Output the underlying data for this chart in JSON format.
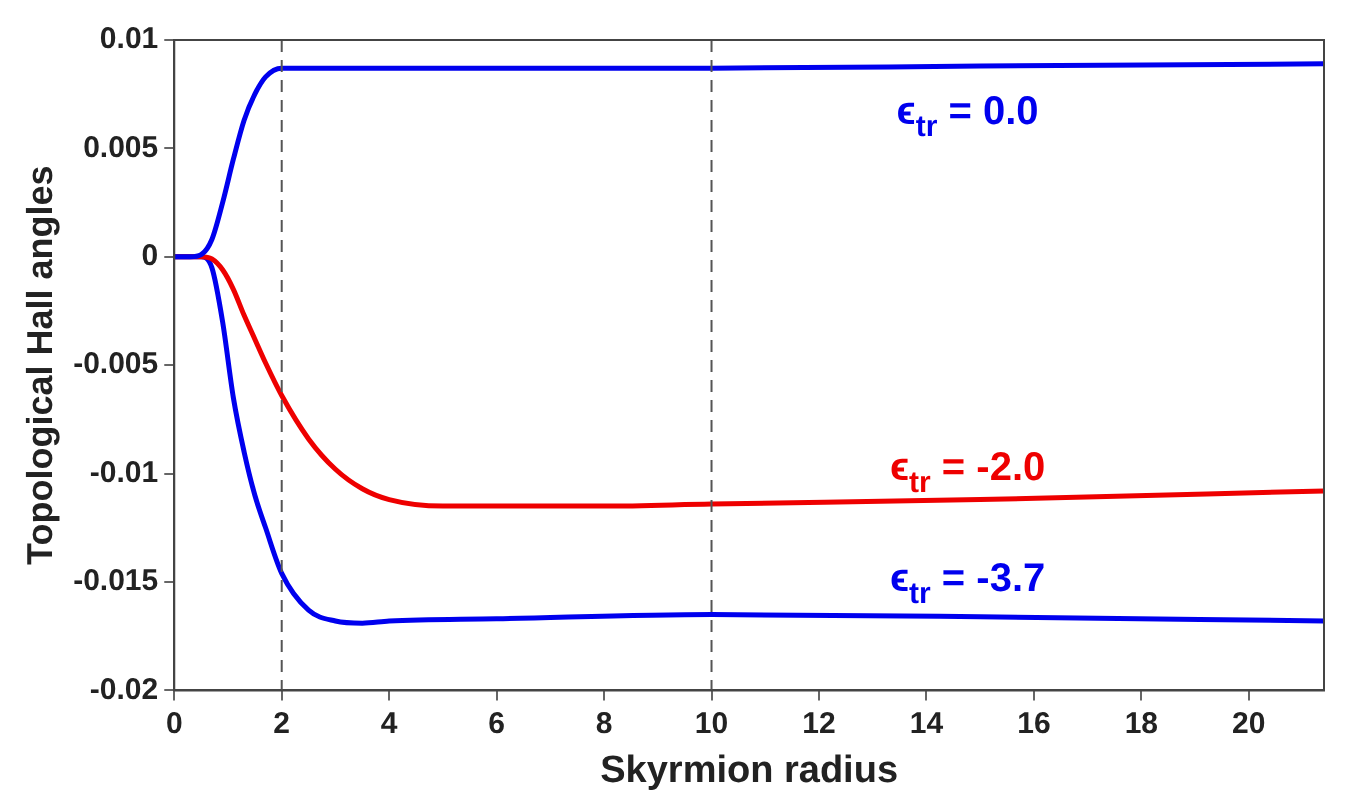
{
  "chart_data": {
    "type": "line",
    "xlabel": "Skyrmion radius",
    "ylabel": "Topological Hall angles",
    "xlim": [
      0,
      21.4
    ],
    "ylim": [
      -0.02,
      0.01
    ],
    "xticks": [
      0,
      2,
      4,
      6,
      8,
      10,
      12,
      14,
      16,
      18,
      20
    ],
    "yticks": [
      -0.02,
      -0.015,
      -0.01,
      -0.005,
      0,
      0.005,
      0.01
    ],
    "grid": false,
    "legend": false,
    "marker": "none",
    "line_style": "solid",
    "ref_lines": [
      {
        "axis": "x",
        "value": 2,
        "color": "#555555",
        "line_style": "dashed"
      },
      {
        "axis": "x",
        "value": 10,
        "color": "#555555",
        "line_style": "dashed"
      }
    ],
    "series": [
      {
        "name": "ϵ$_{tr}$ = 0.0",
        "color": "#0000ee",
        "x": [
          0,
          0.3,
          0.5,
          0.7,
          0.9,
          1.1,
          1.3,
          1.5,
          1.7,
          2,
          2.5,
          3,
          5,
          10,
          15,
          21.4
        ],
        "values": [
          0,
          0,
          0.0001,
          0.0008,
          0.0025,
          0.0045,
          0.0063,
          0.0075,
          0.0083,
          0.0087,
          0.0087,
          0.0087,
          0.0087,
          0.0087,
          0.0088,
          0.0089
        ]
      },
      {
        "name": "ϵ$_{tr}$ = -2.0",
        "color": "#ee0000",
        "x": [
          0,
          0.5,
          0.7,
          0.9,
          1.1,
          1.3,
          1.5,
          1.7,
          2,
          2.5,
          3,
          3.5,
          4,
          5,
          6,
          8,
          10,
          15,
          21.4
        ],
        "values": [
          0,
          0,
          -0.0001,
          -0.0006,
          -0.0015,
          -0.0027,
          -0.0038,
          -0.0049,
          -0.0064,
          -0.0084,
          -0.0098,
          -0.0107,
          -0.0112,
          -0.0115,
          -0.0115,
          -0.0115,
          -0.0114,
          -0.0112,
          -0.0108
        ]
      },
      {
        "name": "ϵ$_{tr}$ = -3.7",
        "color": "#0000ee",
        "x": [
          0,
          0.5,
          0.7,
          0.9,
          1.1,
          1.3,
          1.5,
          1.7,
          2,
          2.5,
          3,
          3.5,
          4,
          6,
          10,
          15,
          21.4
        ],
        "values": [
          0,
          0,
          -0.0005,
          -0.003,
          -0.0065,
          -0.009,
          -0.011,
          -0.0125,
          -0.0146,
          -0.0163,
          -0.0168,
          -0.0169,
          -0.0168,
          -0.0167,
          -0.0165,
          -0.0166,
          -0.0168
        ]
      }
    ]
  }
}
